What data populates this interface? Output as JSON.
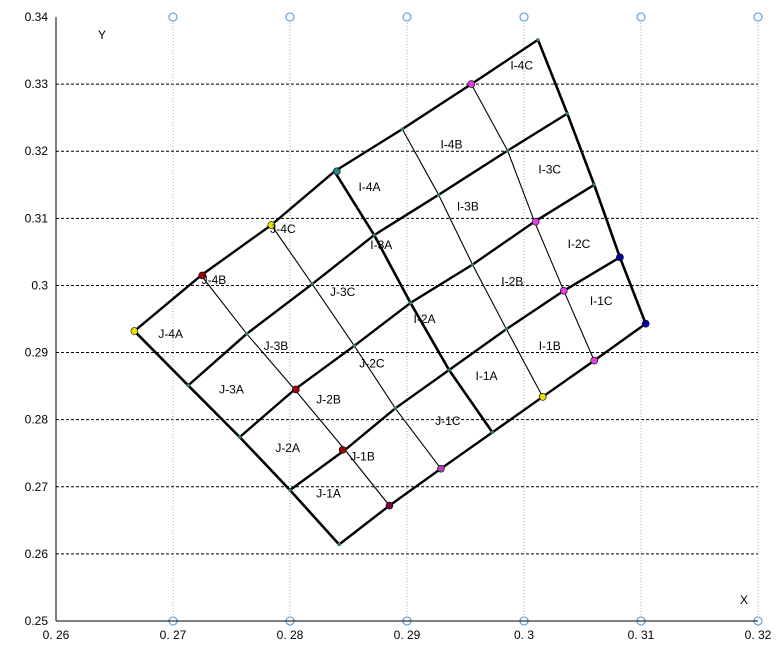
{
  "chart_data": {
    "type": "scatter",
    "title": "",
    "xlabel": "X",
    "ylabel": "Y",
    "xlim": [
      0.26,
      0.32
    ],
    "ylim": [
      0.25,
      0.34
    ],
    "x_ticks": [
      0.26,
      0.27,
      0.28,
      0.29,
      0.3,
      0.31,
      0.32
    ],
    "x_tick_labels": [
      "0. 26",
      "0. 27",
      "0. 28",
      "0. 29",
      "0. 3",
      "0. 31",
      "0. 32"
    ],
    "y_ticks": [
      0.25,
      0.26,
      0.27,
      0.28,
      0.29,
      0.3,
      0.31,
      0.32,
      0.33,
      0.34
    ],
    "y_tick_labels": [
      "0.25",
      "0.26",
      "0.27",
      "0.28",
      "0.29",
      "0.3",
      "0.31",
      "0.32",
      "0.33",
      "0.34"
    ],
    "grid": {
      "vertical": "dotted",
      "horizontal": "dashed"
    },
    "colors": {
      "grid": "#999999",
      "line": "#000000",
      "marker": "#6fa8dc"
    },
    "grid_rows": [
      [
        [
          0.2842,
          0.2614
        ],
        [
          0.2885,
          0.2672
        ],
        [
          0.2929,
          0.2727
        ],
        [
          0.2973,
          0.2781
        ],
        [
          0.3016,
          0.2834
        ],
        [
          0.306,
          0.2888
        ],
        [
          0.3104,
          0.2943
        ]
      ],
      [
        [
          0.28,
          0.2695
        ],
        [
          0.2847,
          0.2755
        ],
        [
          0.289,
          0.2817
        ],
        [
          0.2936,
          0.2874
        ],
        [
          0.2985,
          0.2935
        ],
        [
          0.3034,
          0.2992
        ],
        [
          0.3082,
          0.3042
        ]
      ],
      [
        [
          0.2757,
          0.2774
        ],
        [
          0.2804,
          0.2845
        ],
        [
          0.2855,
          0.291
        ],
        [
          0.2903,
          0.2974
        ],
        [
          0.2956,
          0.3031
        ],
        [
          0.3009,
          0.3095
        ],
        [
          0.306,
          0.315
        ]
      ],
      [
        [
          0.2713,
          0.2851
        ],
        [
          0.2763,
          0.2928
        ],
        [
          0.2819,
          0.3002
        ],
        [
          0.2872,
          0.3075
        ],
        [
          0.2927,
          0.3135
        ],
        [
          0.2986,
          0.3201
        ],
        [
          0.3037,
          0.3256
        ]
      ],
      [
        [
          0.2667,
          0.2932
        ],
        [
          0.2724,
          0.3015
        ],
        [
          0.2784,
          0.309
        ],
        [
          0.2838,
          0.317
        ],
        [
          0.2896,
          0.3233
        ],
        [
          0.2955,
          0.33
        ],
        [
          0.3012,
          0.3366
        ]
      ]
    ],
    "major_columns": [
      0,
      3,
      6
    ],
    "markers": [
      {
        "x": 0.2725,
        "y": 0.3015,
        "color": "#a00000"
      },
      {
        "x": 0.2805,
        "y": 0.2845,
        "color": "#a00000"
      },
      {
        "x": 0.2845,
        "y": 0.2755,
        "color": "#a00000"
      },
      {
        "x": 0.2885,
        "y": 0.2672,
        "color": "#7a0040"
      },
      {
        "x": 0.2955,
        "y": 0.33,
        "color": "#e040e0"
      },
      {
        "x": 0.301,
        "y": 0.3095,
        "color": "#e040e0"
      },
      {
        "x": 0.3034,
        "y": 0.2992,
        "color": "#e040e0"
      },
      {
        "x": 0.306,
        "y": 0.2888,
        "color": "#e040e0"
      },
      {
        "x": 0.3082,
        "y": 0.3042,
        "color": "#0000a0"
      },
      {
        "x": 0.3104,
        "y": 0.2943,
        "color": "#0000a0"
      },
      {
        "x": 0.3016,
        "y": 0.2834,
        "color": "#e8e000"
      },
      {
        "x": 0.2667,
        "y": 0.2932,
        "color": "#e8e000"
      },
      {
        "x": 0.284,
        "y": 0.317,
        "color": "#1a8a8a"
      },
      {
        "x": 0.2929,
        "y": 0.2727,
        "color": "#b040b0"
      },
      {
        "x": 0.2784,
        "y": 0.309,
        "color": "#e8e000"
      }
    ],
    "cell_labels": [
      {
        "text": "I-4C",
        "x": 0.2998,
        "y": 0.3328
      },
      {
        "text": "I-4B",
        "x": 0.2938,
        "y": 0.321
      },
      {
        "text": "I-3C",
        "x": 0.3022,
        "y": 0.3173
      },
      {
        "text": "I-4A",
        "x": 0.2868,
        "y": 0.3147
      },
      {
        "text": "I-3B",
        "x": 0.2952,
        "y": 0.3118
      },
      {
        "text": "J-4C",
        "x": 0.2794,
        "y": 0.3084
      },
      {
        "text": "I-3A",
        "x": 0.2878,
        "y": 0.306
      },
      {
        "text": "I-2C",
        "x": 0.3047,
        "y": 0.3062
      },
      {
        "text": "J-4B",
        "x": 0.2735,
        "y": 0.3008
      },
      {
        "text": "J-3C",
        "x": 0.2845,
        "y": 0.299
      },
      {
        "text": "I-2B",
        "x": 0.299,
        "y": 0.3006
      },
      {
        "text": "I-1C",
        "x": 0.3066,
        "y": 0.2977
      },
      {
        "text": "J-4A",
        "x": 0.2698,
        "y": 0.2928
      },
      {
        "text": "J-3B",
        "x": 0.2788,
        "y": 0.291
      },
      {
        "text": "I-2A",
        "x": 0.2915,
        "y": 0.295
      },
      {
        "text": "I-1B",
        "x": 0.3022,
        "y": 0.291
      },
      {
        "text": "J-2C",
        "x": 0.287,
        "y": 0.2884
      },
      {
        "text": "J-3A",
        "x": 0.275,
        "y": 0.2845
      },
      {
        "text": "I-1A",
        "x": 0.2968,
        "y": 0.2865
      },
      {
        "text": "J-2B",
        "x": 0.2833,
        "y": 0.283
      },
      {
        "text": "J-1C",
        "x": 0.2935,
        "y": 0.2798
      },
      {
        "text": "J-2A",
        "x": 0.2798,
        "y": 0.2758
      },
      {
        "text": "J-1B",
        "x": 0.2862,
        "y": 0.2745
      },
      {
        "text": "J-1A",
        "x": 0.2833,
        "y": 0.269
      }
    ]
  }
}
